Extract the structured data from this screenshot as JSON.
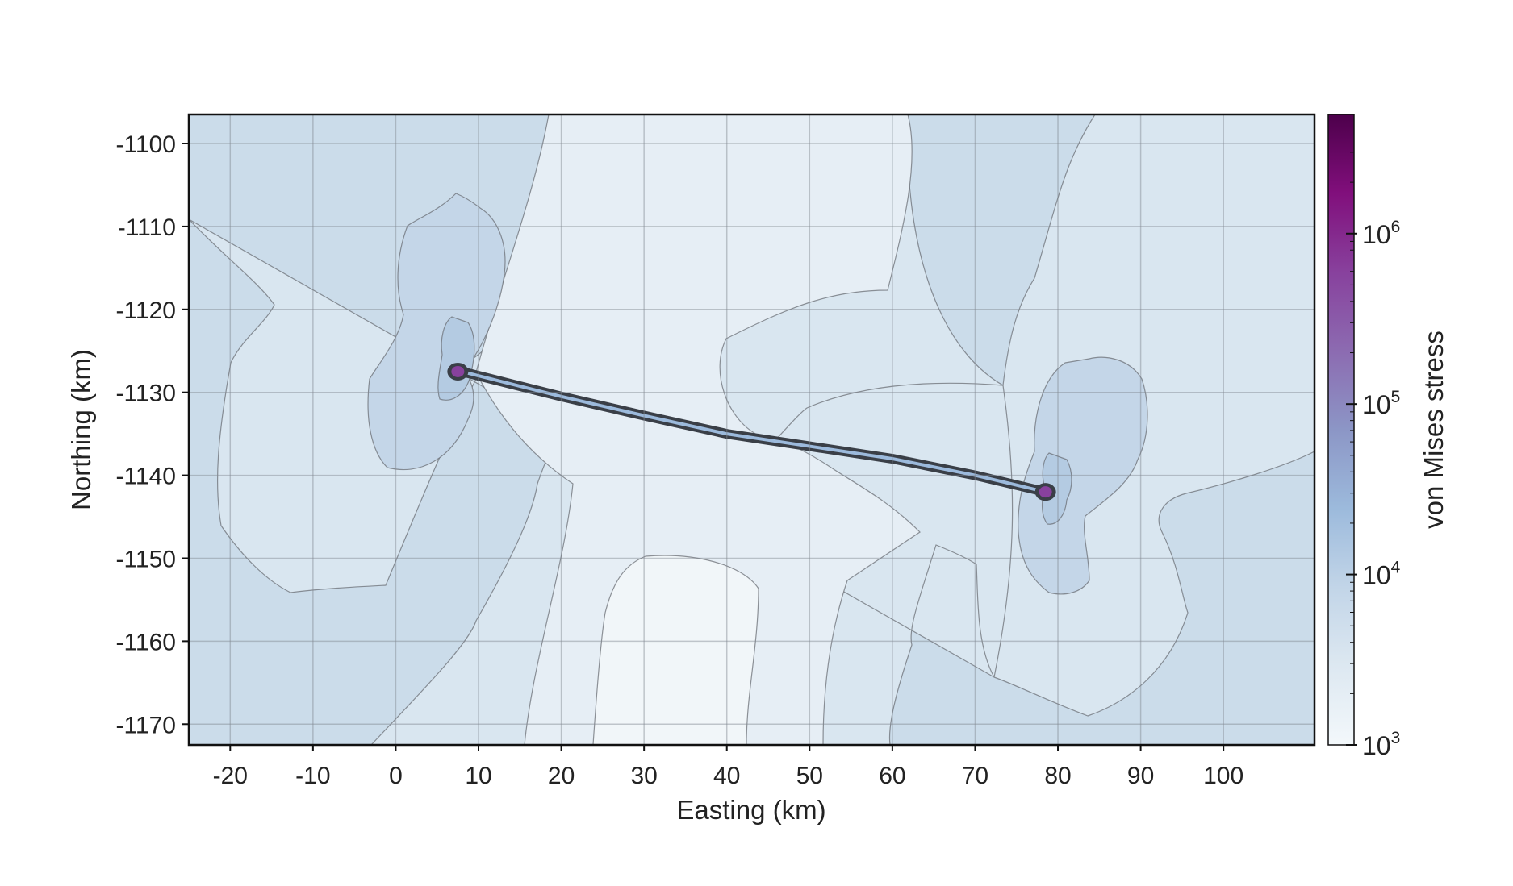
{
  "chart_data": {
    "type": "heatmap",
    "title": "",
    "xlabel": "Easting (km)",
    "ylabel": "Northing (km)",
    "xlim": [
      -25,
      111
    ],
    "ylim": [
      -1172.5,
      -1096.5
    ],
    "xticks": [
      -20,
      -10,
      0,
      10,
      20,
      30,
      40,
      50,
      60,
      70,
      80,
      90,
      100
    ],
    "yticks": [
      -1100,
      -1110,
      -1120,
      -1130,
      -1140,
      -1150,
      -1160,
      -1170
    ],
    "grid": true,
    "colorbar": {
      "label": "von Mises stress",
      "scale": "log",
      "range": [
        1000,
        5000000
      ],
      "ticks": [
        {
          "value": 1000,
          "base": "10",
          "exp": "3"
        },
        {
          "value": 10000,
          "base": "10",
          "exp": "4"
        },
        {
          "value": 100000,
          "base": "10",
          "exp": "5"
        },
        {
          "value": 1000000,
          "base": "10",
          "exp": "6"
        }
      ],
      "colors": [
        "#f3f8fb",
        "#dde8f1",
        "#c2d5e8",
        "#9cbadc",
        "#8c96c6",
        "#8c6bb1",
        "#88419d",
        "#810f7c",
        "#4d004b"
      ]
    },
    "fault": {
      "trace": [
        [
          8,
          -1127.5
        ],
        [
          20,
          -1130.5
        ],
        [
          30,
          -1132.8
        ],
        [
          40,
          -1135
        ],
        [
          50,
          -1136.5
        ],
        [
          60,
          -1138
        ],
        [
          70,
          -1140
        ],
        [
          78.5,
          -1142
        ]
      ]
    },
    "stress_peaks": [
      {
        "x": 7.5,
        "y": -1127.5
      },
      {
        "x": 78.5,
        "y": -1142
      }
    ]
  }
}
